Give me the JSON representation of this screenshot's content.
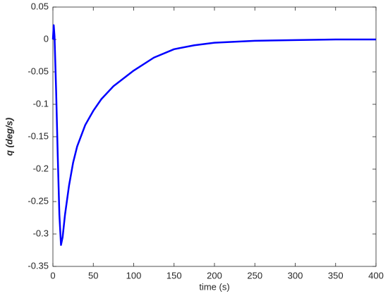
{
  "chart_data": {
    "type": "line",
    "xlabel": "time (s)",
    "ylabel": "q (deg/s)",
    "x": [
      0,
      1,
      2,
      4,
      6,
      8,
      10,
      12,
      15,
      20,
      25,
      30,
      40,
      50,
      60,
      75,
      100,
      125,
      150,
      175,
      200,
      250,
      300,
      350,
      400
    ],
    "series": [
      {
        "color": "#0000ff",
        "values": [
          0,
          0.022,
          0.005,
          -0.08,
          -0.18,
          -0.27,
          -0.317,
          -0.305,
          -0.27,
          -0.225,
          -0.19,
          -0.165,
          -0.132,
          -0.11,
          -0.092,
          -0.072,
          -0.048,
          -0.028,
          -0.015,
          -0.009,
          -0.005,
          -0.002,
          -0.001,
          0,
          0
        ]
      }
    ],
    "xlim": [
      0,
      400
    ],
    "xticks": [
      0,
      50,
      100,
      150,
      200,
      250,
      300,
      350,
      400
    ],
    "ylim": [
      -0.35,
      0.05
    ],
    "yticks": [
      -0.35,
      -0.3,
      -0.25,
      -0.2,
      -0.15,
      -0.1,
      -0.05,
      0,
      0.05
    ]
  }
}
